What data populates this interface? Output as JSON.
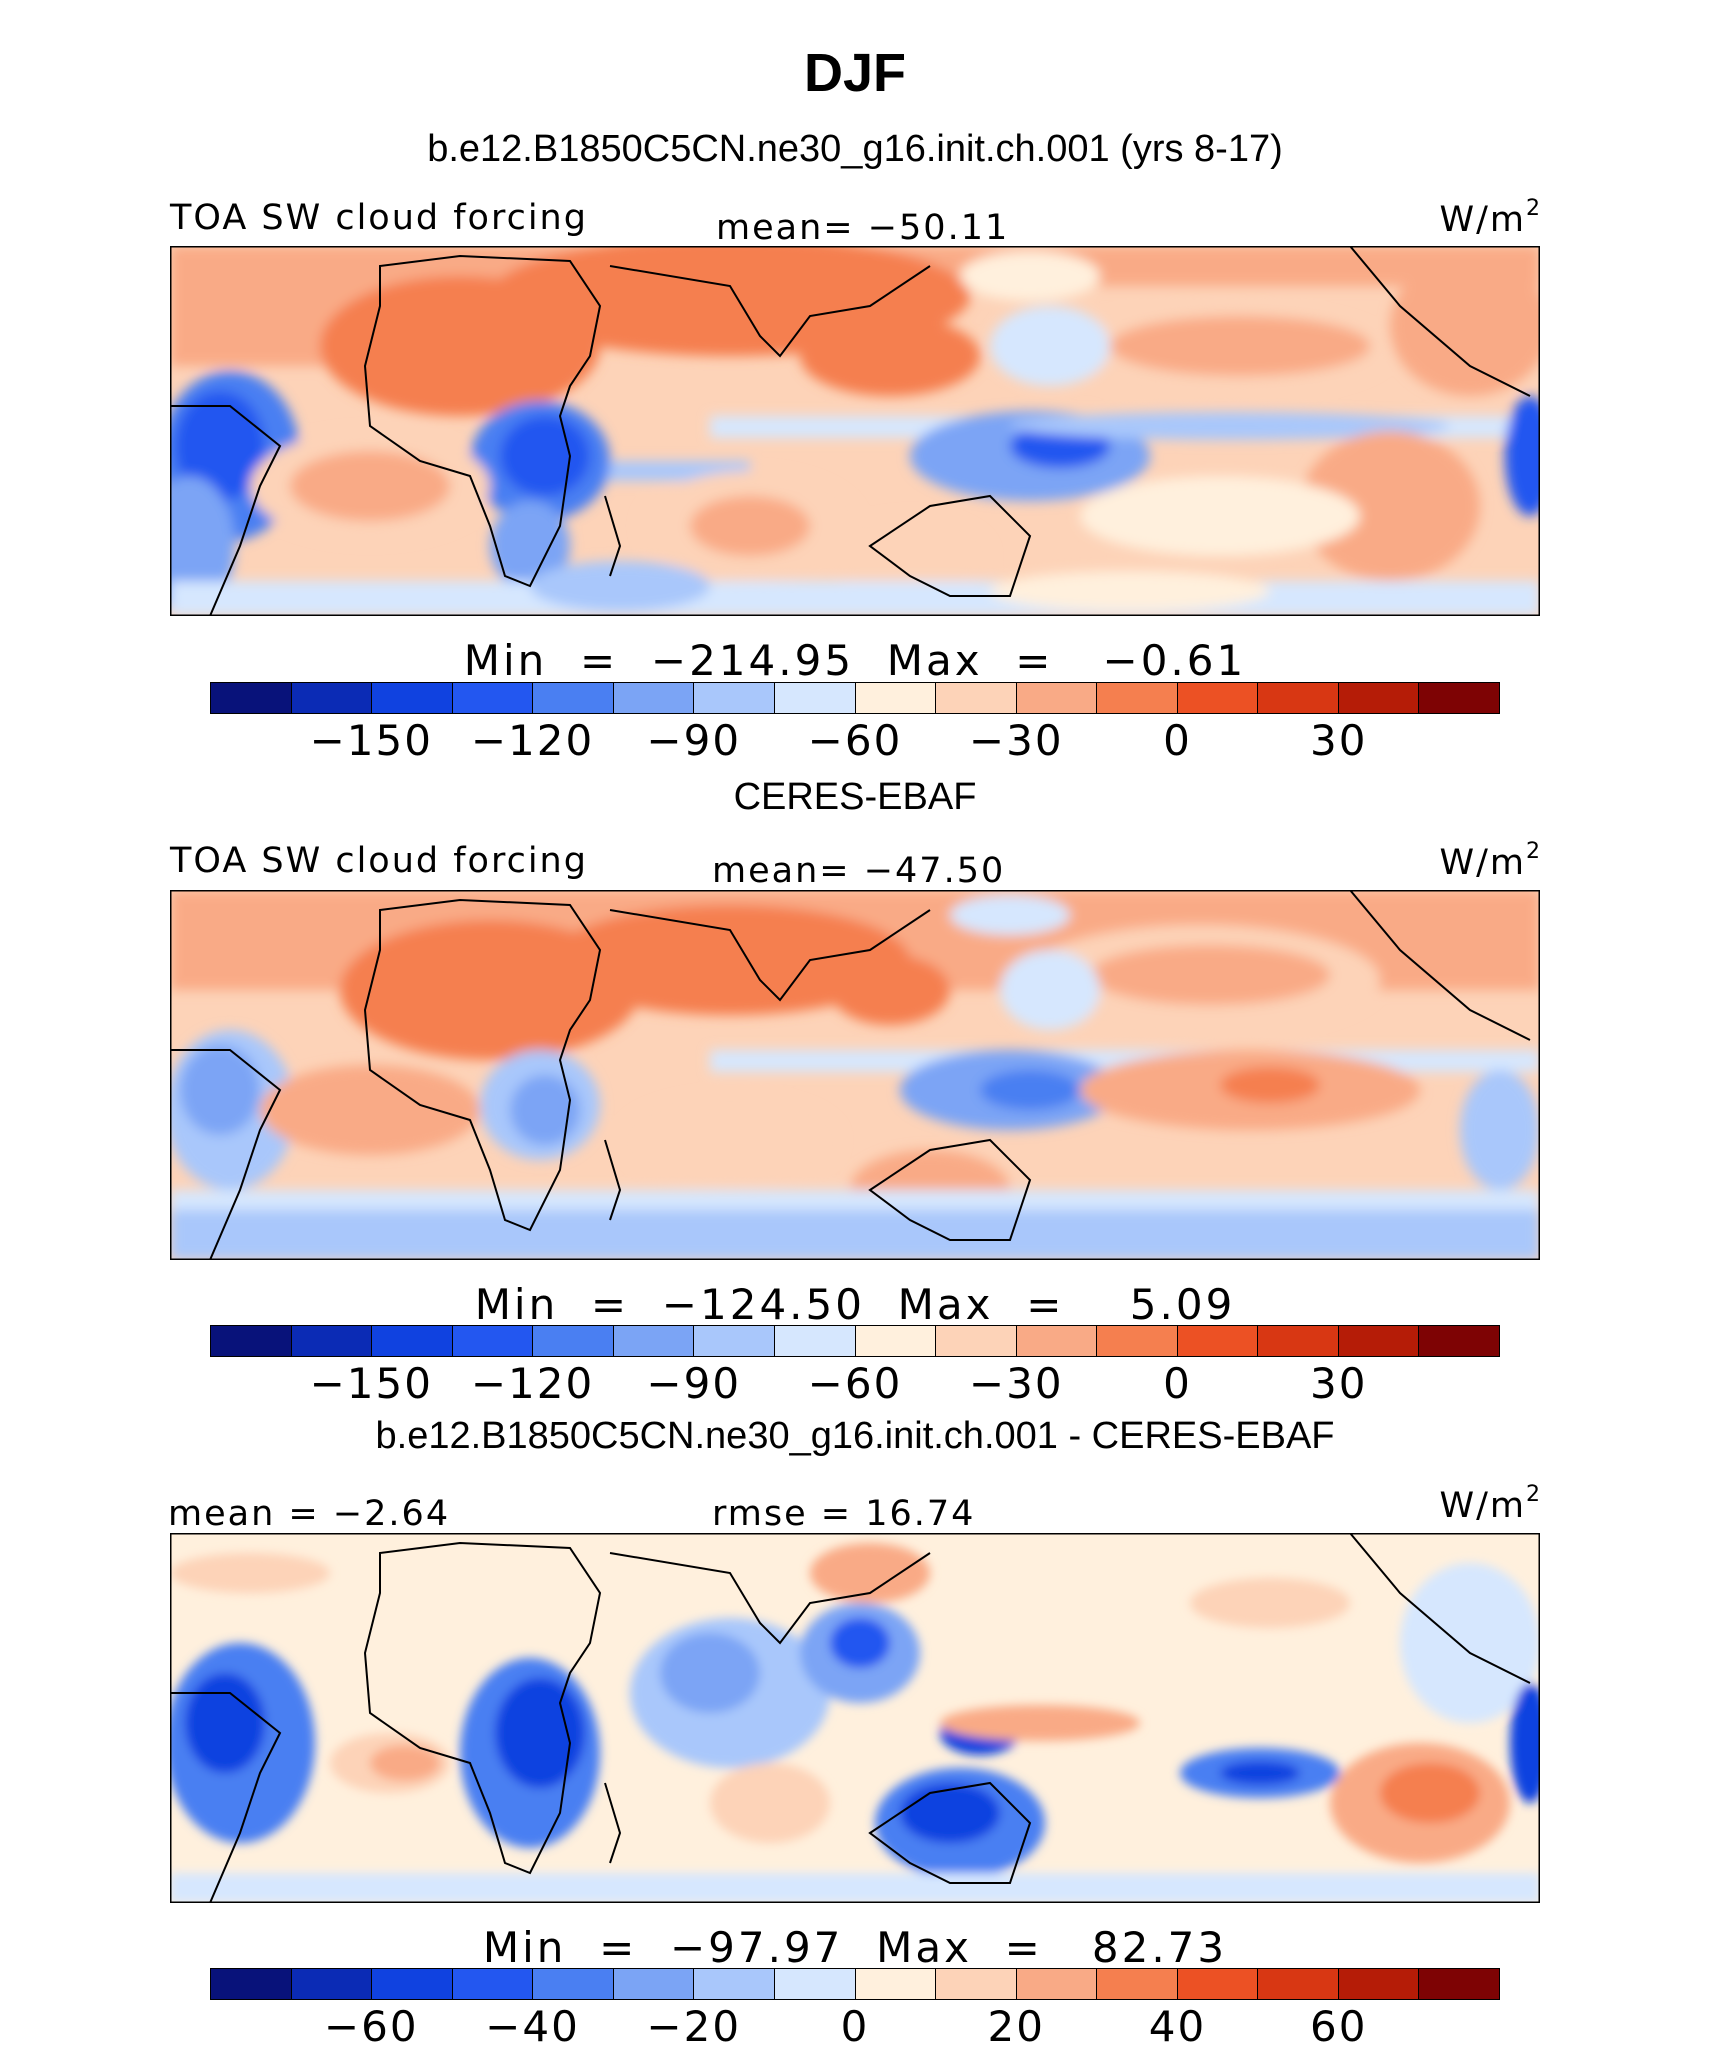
{
  "figure": {
    "title": "DJF",
    "season": "DJF"
  },
  "colors": {
    "palette": [
      "#08127a",
      "#0b2bb5",
      "#1042e0",
      "#2357f0",
      "#4a7ff2",
      "#7ba4f5",
      "#a9c7fb",
      "#d6e7fe",
      "#fff0dd",
      "#fdd3b8",
      "#f9aa86",
      "#f57f4f",
      "#ec5124",
      "#d83713",
      "#b51c07",
      "#7e0304"
    ],
    "land_outline": "#000000"
  },
  "panels": [
    {
      "id": "model",
      "header": "b.e12.B1850C5CN.ne30_g16.init.ch.001 (yrs 8-17)",
      "left_label": "TOA SW cloud forcing",
      "center_label": "mean= −50.11",
      "units": "W/m",
      "units_sup": "2",
      "minmax": "Min  =  −214.95  Max  =   −0.61",
      "ticks": [
        "−150",
        "−120",
        "−90",
        "−60",
        "−30",
        "0",
        "30"
      ]
    },
    {
      "id": "obs",
      "header": "CERES-EBAF",
      "left_label": "TOA SW cloud forcing",
      "center_label": "mean= −47.50",
      "units": "W/m",
      "units_sup": "2",
      "minmax": "Min  =  −124.50  Max  =    5.09",
      "ticks": [
        "−150",
        "−120",
        "−90",
        "−60",
        "−30",
        "0",
        "30"
      ]
    },
    {
      "id": "diff",
      "header": "b.e12.B1850C5CN.ne30_g16.init.ch.001 - CERES-EBAF",
      "left_label": "mean =  −2.64",
      "center_label": "rmse =  16.74",
      "units": "W/m",
      "units_sup": "2",
      "minmax": "Min  =  −97.97  Max  =   82.73",
      "ticks": [
        "−60",
        "−40",
        "−20",
        "0",
        "20",
        "40",
        "60"
      ]
    }
  ],
  "chart_data": [
    {
      "type": "heatmap",
      "title": "b.e12.B1850C5CN.ne30_g16.init.ch.001 (yrs 8-17)",
      "variable": "TOA SW cloud forcing",
      "units": "W/m2",
      "mean": -50.11,
      "min": -214.95,
      "max": -0.61,
      "colorbar_ticks": [
        -150,
        -120,
        -90,
        -60,
        -30,
        0,
        30
      ],
      "colorbar_levels": [
        -165,
        -150,
        -135,
        -120,
        -105,
        -90,
        -75,
        -60,
        -45,
        -30,
        -15,
        0,
        15,
        30,
        45
      ]
    },
    {
      "type": "heatmap",
      "title": "CERES-EBAF",
      "variable": "TOA SW cloud forcing",
      "units": "W/m2",
      "mean": -47.5,
      "min": -124.5,
      "max": 5.09,
      "colorbar_ticks": [
        -150,
        -120,
        -90,
        -60,
        -30,
        0,
        30
      ],
      "colorbar_levels": [
        -165,
        -150,
        -135,
        -120,
        -105,
        -90,
        -75,
        -60,
        -45,
        -30,
        -15,
        0,
        15,
        30,
        45
      ]
    },
    {
      "type": "heatmap",
      "title": "b.e12.B1850C5CN.ne30_g16.init.ch.001 - CERES-EBAF",
      "units": "W/m2",
      "mean": -2.64,
      "rmse": 16.74,
      "min": -97.97,
      "max": 82.73,
      "colorbar_ticks": [
        -60,
        -40,
        -20,
        0,
        20,
        40,
        60
      ],
      "colorbar_levels": [
        -70,
        -60,
        -50,
        -40,
        -30,
        -20,
        -10,
        0,
        10,
        20,
        30,
        40,
        50,
        60,
        70
      ]
    }
  ]
}
